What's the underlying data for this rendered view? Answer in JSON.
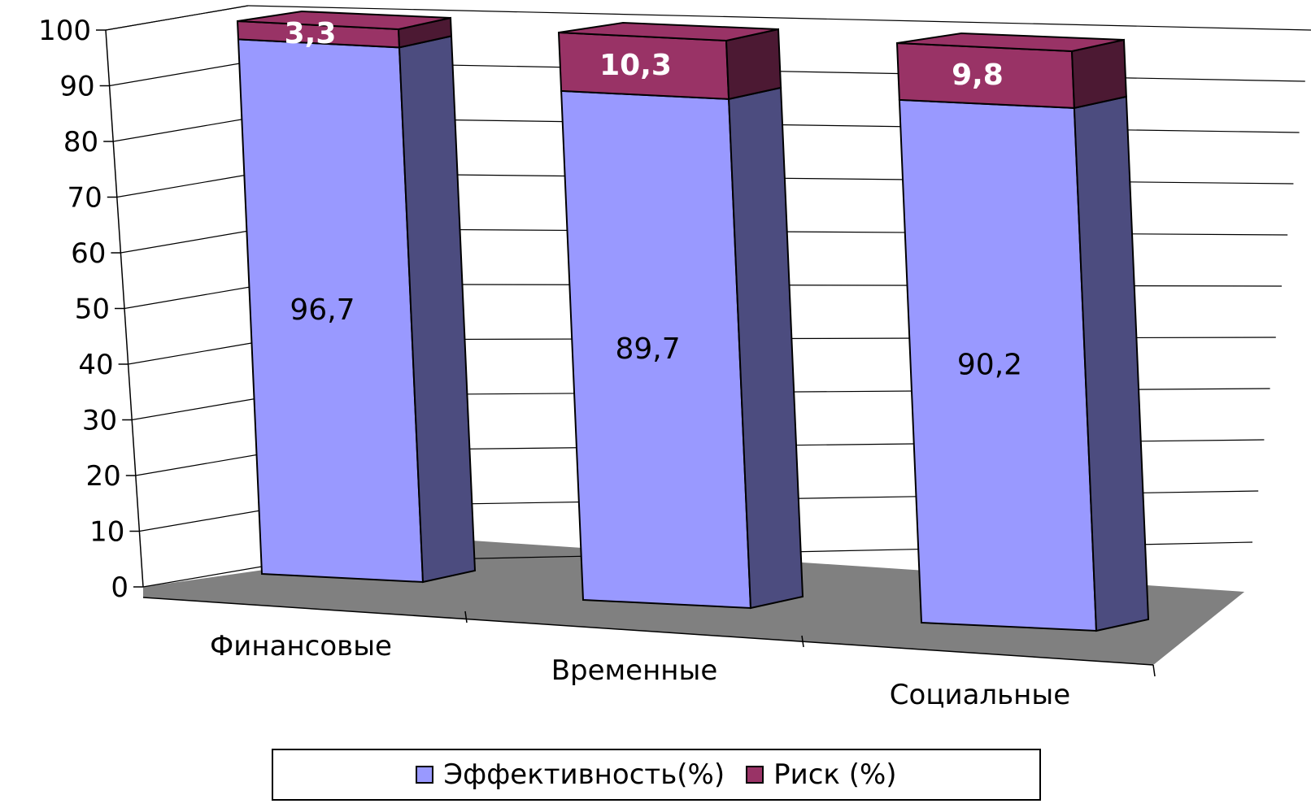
{
  "chart_data": {
    "type": "bar",
    "stacked": true,
    "three_d": true,
    "categories": [
      "Финансовые",
      "Временные",
      "Социальные"
    ],
    "series": [
      {
        "name": "Эффективность(%)",
        "values": [
          96.7,
          89.7,
          90.2
        ],
        "labels": [
          "96,7",
          "89,7",
          "90,2"
        ],
        "color": "#9999ff",
        "side_color": "#4c4c7f"
      },
      {
        "name": "Риск (%)",
        "values": [
          3.3,
          10.3,
          9.8
        ],
        "labels": [
          "3,3",
          "10,3",
          "9,8"
        ],
        "color": "#993366",
        "side_color": "#4c1933"
      }
    ],
    "y_ticks": [
      "0",
      "10",
      "20",
      "30",
      "40",
      "50",
      "60",
      "70",
      "80",
      "90",
      "100"
    ],
    "ylim": [
      0,
      100
    ],
    "grid": true,
    "floor_color": "#808080",
    "legend_position": "bottom"
  }
}
